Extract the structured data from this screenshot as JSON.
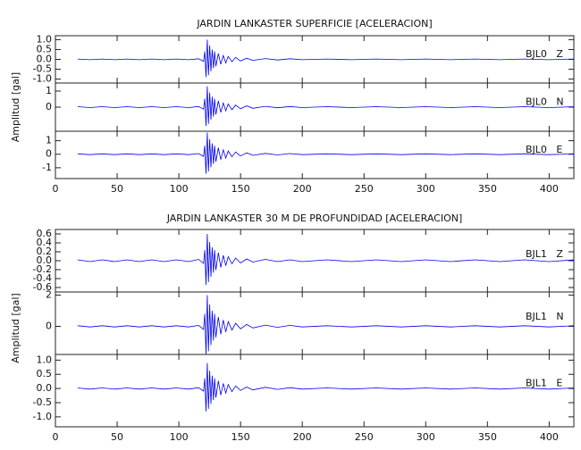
{
  "chart_data": [
    {
      "type": "line",
      "title": "JARDIN LANKASTER SUPERFICIE [ACELERACION]",
      "ylabel": "Amplitud [gal]",
      "xlim": [
        0,
        420
      ],
      "xticks": [
        0,
        50,
        100,
        150,
        200,
        250,
        300,
        350,
        400
      ],
      "color": "#0000ee",
      "x": [
        18,
        28,
        38,
        48,
        58,
        68,
        78,
        88,
        98,
        108,
        116,
        120,
        121,
        122,
        123,
        124,
        125,
        126,
        127,
        128,
        129,
        130,
        132,
        134,
        136,
        138,
        140,
        143,
        146,
        150,
        155,
        160,
        170,
        180,
        190,
        200,
        220,
        240,
        260,
        280,
        300,
        320,
        340,
        360,
        380,
        400,
        420
      ],
      "series": [
        {
          "name": "BJL0   Z",
          "ylim": [
            -1.2,
            1.2
          ],
          "yticks": [
            {
              "value": 1,
              "label": "1.0"
            },
            {
              "value": 0.5,
              "label": "0.5"
            },
            {
              "value": 0,
              "label": "0.0"
            },
            {
              "value": -0.5,
              "label": "-0.5"
            },
            {
              "value": -1,
              "label": "-1.0"
            }
          ],
          "values": [
            0.02,
            -0.02,
            0.02,
            -0.02,
            0.02,
            -0.02,
            0.02,
            -0.02,
            0.02,
            -0.02,
            0.03,
            -0.1,
            0.4,
            -0.9,
            1.0,
            -0.8,
            0.7,
            -0.6,
            0.5,
            -0.45,
            0.4,
            -0.35,
            0.3,
            -0.25,
            0.2,
            -0.18,
            0.15,
            -0.12,
            0.1,
            -0.08,
            0.06,
            -0.05,
            0.04,
            -0.03,
            0.03,
            -0.02,
            0.02,
            -0.02,
            0.02,
            -0.02,
            0.02,
            -0.02,
            0.02,
            -0.02,
            0.02,
            -0.02,
            0.02
          ]
        },
        {
          "name": "BJL0   N",
          "ylim": [
            -1.5,
            1.5
          ],
          "yticks": [
            0,
            1
          ],
          "values": [
            0.03,
            -0.03,
            0.03,
            -0.03,
            0.03,
            -0.03,
            0.03,
            -0.03,
            0.03,
            -0.03,
            0.04,
            -0.13,
            0.52,
            -1.17,
            1.3,
            -1.04,
            0.91,
            -0.78,
            0.65,
            -0.59,
            0.52,
            -0.46,
            0.39,
            -0.33,
            0.26,
            -0.23,
            0.2,
            -0.16,
            0.13,
            -0.1,
            0.08,
            -0.07,
            0.05,
            -0.04,
            0.04,
            -0.03,
            0.03,
            -0.03,
            0.03,
            -0.03,
            0.03,
            -0.03,
            0.03,
            -0.03,
            0.03,
            -0.03,
            0.03
          ]
        },
        {
          "name": "BJL0   E",
          "ylim": [
            -1.8,
            1.7
          ],
          "yticks": [
            -1,
            0,
            1
          ],
          "values": [
            0.03,
            -0.03,
            0.03,
            -0.03,
            0.03,
            -0.03,
            0.03,
            -0.03,
            0.03,
            -0.03,
            0.05,
            -0.16,
            0.64,
            -1.44,
            1.6,
            -1.28,
            1.12,
            -0.96,
            0.8,
            -0.72,
            0.64,
            -0.56,
            0.48,
            -0.4,
            0.32,
            -0.29,
            0.24,
            -0.19,
            0.16,
            -0.13,
            0.1,
            -0.08,
            0.06,
            -0.05,
            0.05,
            -0.03,
            0.03,
            -0.03,
            0.03,
            -0.03,
            0.03,
            -0.03,
            0.03,
            -0.03,
            0.03,
            -0.03,
            0.03
          ]
        }
      ]
    },
    {
      "type": "line",
      "title": "JARDIN LANKASTER 30 M DE PROFUNDIDAD [ACELERACION]",
      "ylabel": "Amplitud [gal]",
      "xlim": [
        0,
        420
      ],
      "xticks": [
        0,
        50,
        100,
        150,
        200,
        250,
        300,
        350,
        400
      ],
      "color": "#0000ee",
      "x": [
        18,
        28,
        38,
        48,
        58,
        68,
        78,
        88,
        98,
        108,
        116,
        120,
        121,
        122,
        123,
        124,
        125,
        126,
        127,
        128,
        129,
        130,
        132,
        134,
        136,
        138,
        140,
        143,
        146,
        150,
        155,
        160,
        170,
        180,
        190,
        200,
        220,
        240,
        260,
        280,
        300,
        320,
        340,
        360,
        380,
        400,
        420
      ],
      "series": [
        {
          "name": "BJL1   Z",
          "ylim": [
            -0.7,
            0.7
          ],
          "yticks": [
            {
              "value": 0.6,
              "label": "0.6"
            },
            {
              "value": 0.4,
              "label": "0.4"
            },
            {
              "value": 0.2,
              "label": "0.2"
            },
            {
              "value": 0,
              "label": "0.0"
            },
            {
              "value": -0.2,
              "label": "-0.2"
            },
            {
              "value": -0.4,
              "label": "-0.4"
            },
            {
              "value": -0.6,
              "label": "-0.6"
            }
          ],
          "values": [
            0.02,
            -0.02,
            0.02,
            -0.02,
            0.02,
            -0.02,
            0.02,
            -0.02,
            0.02,
            -0.02,
            0.03,
            -0.06,
            0.24,
            -0.54,
            0.6,
            -0.48,
            0.42,
            -0.36,
            0.3,
            -0.27,
            0.24,
            -0.21,
            0.18,
            -0.15,
            0.12,
            -0.11,
            0.09,
            -0.07,
            0.06,
            -0.05,
            0.04,
            -0.03,
            0.03,
            -0.02,
            0.02,
            -0.02,
            0.02,
            -0.02,
            0.02,
            -0.02,
            0.02,
            -0.02,
            0.02,
            -0.02,
            0.02,
            -0.02,
            0.02
          ]
        },
        {
          "name": "BJL1   N",
          "ylim": [
            -1.8,
            2.2
          ],
          "yticks": [
            0,
            2
          ],
          "values": [
            0.04,
            -0.04,
            0.04,
            -0.04,
            0.04,
            -0.04,
            0.04,
            -0.04,
            0.04,
            -0.04,
            0.06,
            -0.2,
            0.8,
            -1.8,
            2.0,
            -1.6,
            1.4,
            -1.2,
            1.0,
            -0.9,
            0.8,
            -0.7,
            0.6,
            -0.5,
            0.4,
            -0.36,
            0.3,
            -0.24,
            0.2,
            -0.16,
            0.12,
            -0.1,
            0.08,
            -0.06,
            0.06,
            -0.04,
            0.04,
            -0.04,
            0.04,
            -0.04,
            0.04,
            -0.04,
            0.04,
            -0.04,
            0.04,
            -0.04,
            0.04
          ]
        },
        {
          "name": "BJL1   E",
          "ylim": [
            -1.35,
            1.2
          ],
          "yticks": [
            {
              "value": 1,
              "label": "1.0"
            },
            {
              "value": 0.5,
              "label": "0.5"
            },
            {
              "value": 0,
              "label": "0.0"
            },
            {
              "value": -0.5,
              "label": "-0.5"
            },
            {
              "value": -1,
              "label": "-1.0"
            }
          ],
          "values": [
            0.02,
            -0.02,
            0.02,
            -0.02,
            0.02,
            -0.02,
            0.02,
            -0.02,
            0.02,
            -0.02,
            0.03,
            -0.09,
            0.36,
            -0.81,
            0.9,
            -0.72,
            0.63,
            -0.54,
            0.45,
            -0.41,
            0.36,
            -0.32,
            0.27,
            -0.23,
            0.18,
            -0.16,
            0.14,
            -0.11,
            0.09,
            -0.07,
            0.05,
            -0.05,
            0.04,
            -0.03,
            0.03,
            -0.02,
            0.02,
            -0.02,
            0.02,
            -0.02,
            0.02,
            -0.02,
            0.02,
            -0.02,
            0.02,
            -0.02,
            0.02
          ]
        }
      ]
    }
  ]
}
